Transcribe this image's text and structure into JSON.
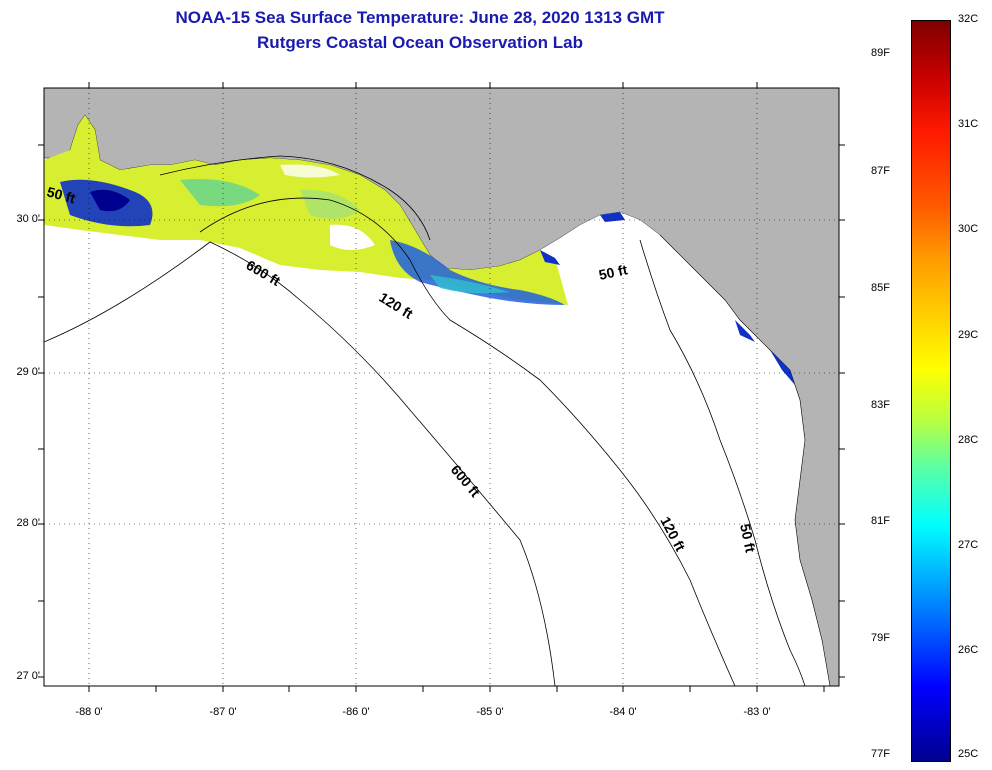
{
  "title": {
    "line1": "NOAA-15 Sea Surface Temperature:  June 28, 2020 1313 GMT",
    "line2": "Rutgers Coastal Ocean Observation Lab"
  },
  "axes": {
    "lat_labels": [
      "30 0'",
      "29 0'",
      "28 0'",
      "27 0'"
    ],
    "lon_labels": [
      "-88 0'",
      "-87 0'",
      "-86 0'",
      "-85 0'",
      "-84 0'",
      "-83 0'"
    ]
  },
  "contours": {
    "c50_a": "50 ft",
    "c600_a": "600 ft",
    "c120_a": "120 ft",
    "c50_b": "50 ft",
    "c600_b": "600 ft",
    "c120_b": "120 ft",
    "c50_c": "50 ft"
  },
  "colorbar": {
    "fahrenheit": [
      "89F",
      "87F",
      "85F",
      "83F",
      "81F",
      "79F",
      "77F"
    ],
    "celsius": [
      "32C",
      "31C",
      "30C",
      "29C",
      "28C",
      "27C",
      "26C",
      "25C"
    ]
  },
  "colors": {
    "land": "#b4b4b4",
    "title": "#1a1ab0"
  }
}
